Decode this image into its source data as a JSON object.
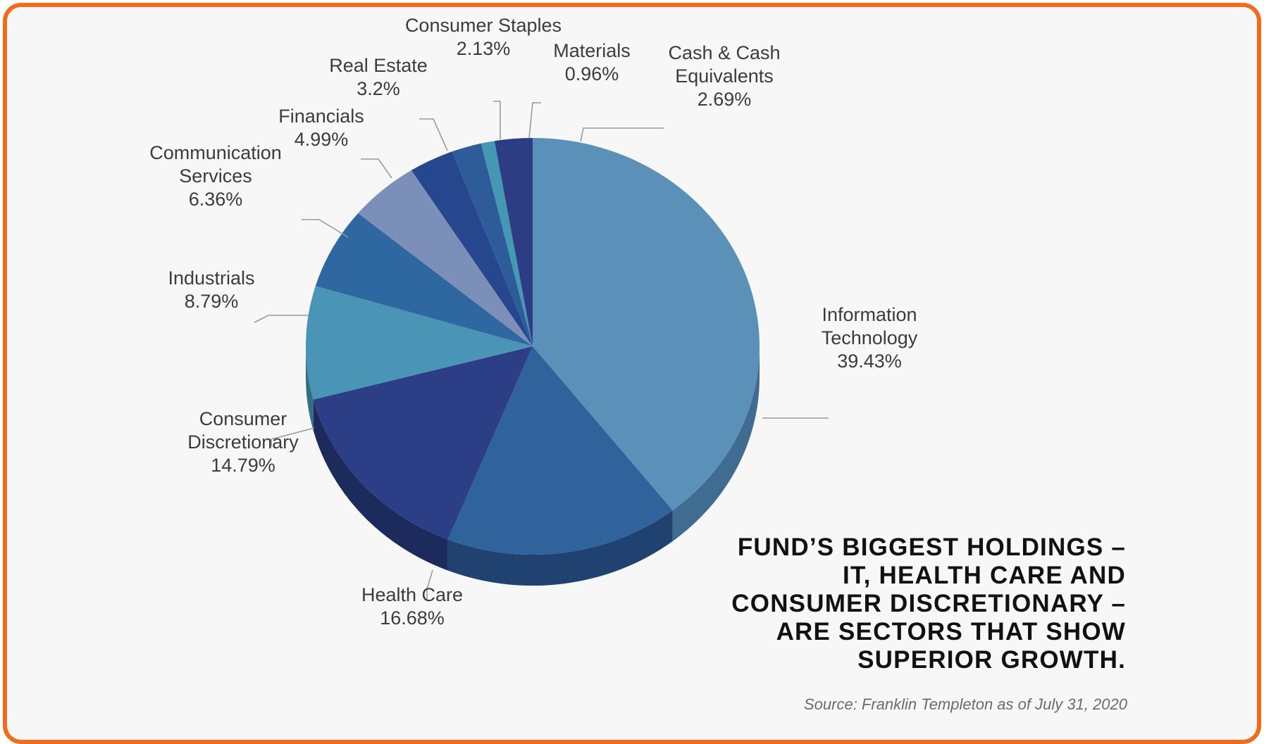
{
  "chart_data": {
    "type": "pie",
    "title": "",
    "style": "3d-tilted",
    "slices": [
      {
        "label_lines": [
          "Information",
          "Technology"
        ],
        "value": 39.43,
        "value_text": "39.43%",
        "color": "#5b90b9",
        "side_color": "#3f6c90"
      },
      {
        "label_lines": [
          "Health Care"
        ],
        "value": 16.68,
        "value_text": "16.68%",
        "color": "#30629c",
        "side_color": "#1f4270"
      },
      {
        "label_lines": [
          "Consumer",
          "Discretionary"
        ],
        "value": 14.79,
        "value_text": "14.79%",
        "color": "#2c3f86",
        "side_color": "#1c2a5c"
      },
      {
        "label_lines": [
          "Industrials"
        ],
        "value": 8.79,
        "value_text": "8.79%",
        "color": "#4a95b5",
        "side_color": "#336d86"
      },
      {
        "label_lines": [
          "Communication",
          "Services"
        ],
        "value": 6.36,
        "value_text": "6.36%",
        "color": "#2f68a0",
        "side_color": "#204a74"
      },
      {
        "label_lines": [
          "Financials"
        ],
        "value": 4.99,
        "value_text": "4.99%",
        "color": "#7b8fb8",
        "side_color": "#5a6b8e"
      },
      {
        "label_lines": [
          "Real Estate"
        ],
        "value": 3.2,
        "value_text": "3.2%",
        "color": "#26478d",
        "side_color": "#1a3366"
      },
      {
        "label_lines": [
          "Consumer Staples"
        ],
        "value": 2.13,
        "value_text": "2.13%",
        "color": "#2d5c99",
        "side_color": "#1f426f"
      },
      {
        "label_lines": [
          "Materials"
        ],
        "value": 0.96,
        "value_text": "0.96%",
        "color": "#4598b4",
        "side_color": "#2f6f86"
      },
      {
        "label_lines": [
          "Cash & Cash",
          "Equivalents"
        ],
        "value": 2.69,
        "value_text": "2.69%",
        "color": "#2d3d84",
        "side_color": "#1d2a5e"
      }
    ]
  },
  "headline_lines": [
    "FUND’S BIGGEST HOLDINGS –",
    "IT, HEALTH CARE AND",
    "CONSUMER DISCRETIONARY –",
    "ARE SECTORS THAT SHOW",
    "SUPERIOR GROWTH."
  ],
  "source": "Source: Franklin Templeton as of July 31, 2020"
}
